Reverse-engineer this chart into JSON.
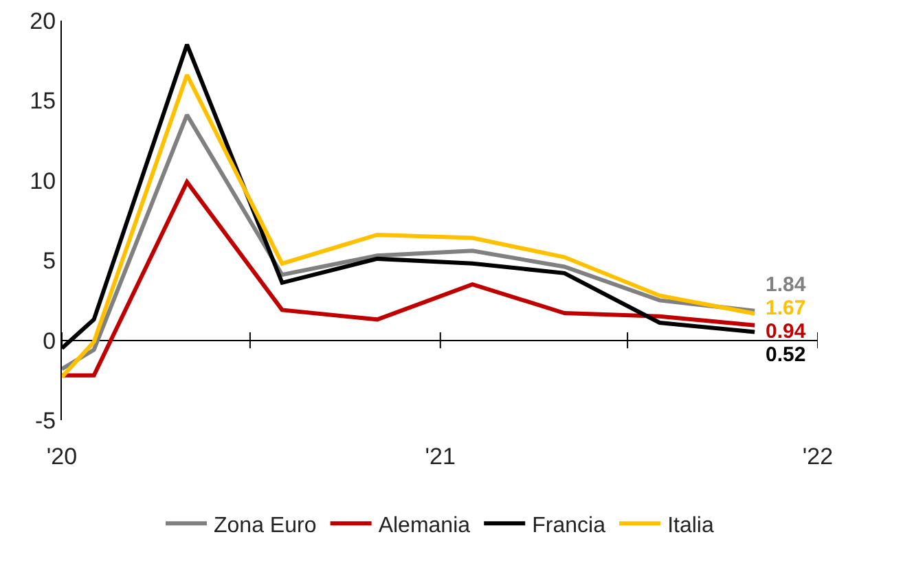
{
  "chart_data": {
    "type": "line",
    "x": [
      "2020-01",
      "2020-02",
      "2020-05",
      "2020-08",
      "2020-11",
      "2021-02",
      "2021-05",
      "2021-08",
      "2021-11"
    ],
    "series": [
      {
        "name": "Zona Euro",
        "color": "#808080",
        "values": [
          -1.8,
          -0.6,
          14.1,
          4.1,
          5.3,
          5.6,
          4.6,
          2.5,
          1.84
        ],
        "value_labels": [
          null,
          null,
          null,
          null,
          null,
          null,
          null,
          null,
          "1.84"
        ]
      },
      {
        "name": "Alemania",
        "color": "#c00000",
        "values": [
          -2.2,
          -2.2,
          9.9,
          1.9,
          1.3,
          3.5,
          1.7,
          1.5,
          0.94
        ],
        "value_labels": [
          null,
          null,
          null,
          null,
          null,
          null,
          null,
          null,
          "0.94"
        ]
      },
      {
        "name": "Francia",
        "color": "#000000",
        "values": [
          -0.5,
          1.3,
          18.5,
          3.6,
          5.1,
          4.8,
          4.2,
          1.1,
          0.52
        ],
        "value_labels": [
          null,
          null,
          null,
          null,
          null,
          null,
          null,
          null,
          "0.52"
        ]
      },
      {
        "name": "Italia",
        "color": "#ffc000",
        "values": [
          -2.3,
          -0.1,
          16.6,
          4.8,
          6.6,
          6.4,
          5.2,
          2.8,
          1.67
        ],
        "value_labels": [
          null,
          null,
          null,
          null,
          null,
          null,
          null,
          null,
          "1.67"
        ]
      }
    ],
    "xlim": [
      "2020-01-01",
      "2022-01-01"
    ],
    "xticks": [
      {
        "value": "2020-01-01",
        "label": "'20"
      },
      {
        "value": "2020-07-01",
        "label": null
      },
      {
        "value": "2021-01-01",
        "label": "'21"
      },
      {
        "value": "2021-07-01",
        "label": null
      },
      {
        "value": "2022-01-01",
        "label": "'22"
      }
    ],
    "ylim": [
      -5,
      20
    ],
    "yticks": [
      -5,
      0,
      5,
      10,
      15,
      20
    ],
    "legend": "bottom",
    "line_style": "solid"
  }
}
